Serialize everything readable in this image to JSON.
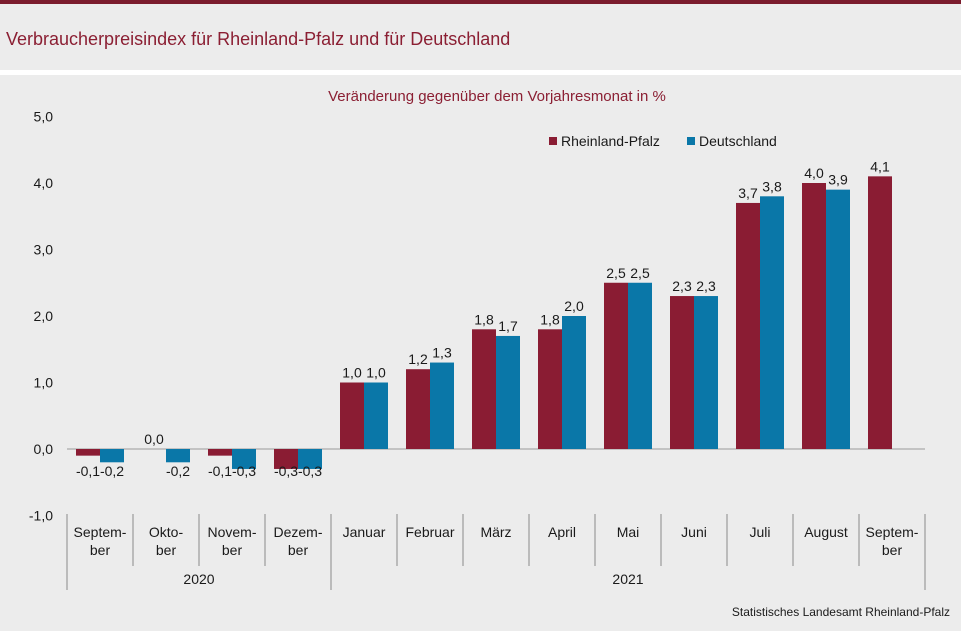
{
  "page_title": "Verbraucherpreisindex für Rheinland-Pfalz und für Deutschland",
  "colors": {
    "accent": "#7b1c2d",
    "title": "#8b1f33",
    "rlp": "#8a1c33",
    "de": "#0a77a8"
  },
  "chart_data": {
    "type": "bar",
    "title": "Veränderung gegenüber dem Vorjahresmonat in %",
    "xlabel": "",
    "ylabel": "",
    "ylim": [
      -1,
      5
    ],
    "yticks": [
      "5,0",
      "4,0",
      "3,0",
      "2,0",
      "1,0",
      "0,0",
      "-1,0"
    ],
    "grid": false,
    "legend_position": "top-right",
    "categories": [
      [
        "Septem-",
        "ber"
      ],
      [
        "Okto-",
        "ber"
      ],
      [
        "Novem-",
        "ber"
      ],
      [
        "Dezem-",
        "ber"
      ],
      [
        "Januar"
      ],
      [
        "Februar"
      ],
      [
        "März"
      ],
      [
        "April"
      ],
      [
        "Mai"
      ],
      [
        "Juni"
      ],
      [
        "Juli"
      ],
      [
        "August"
      ],
      [
        "Septem-",
        "ber"
      ]
    ],
    "year_groups": [
      {
        "label": "2020",
        "count": 4
      },
      {
        "label": "2021",
        "count": 9
      }
    ],
    "series": [
      {
        "name": "Rheinland-Pfalz",
        "values": [
          -0.1,
          0.0,
          -0.1,
          -0.3,
          1.0,
          1.2,
          1.8,
          1.8,
          2.5,
          2.3,
          3.7,
          4.0,
          4.1
        ],
        "labels": [
          "-0,1",
          "0,0",
          "-0,1",
          "-0,3",
          "1,0",
          "1,2",
          "1,8",
          "1,8",
          "2,5",
          "2,3",
          "3,7",
          "4,0",
          "4,1"
        ]
      },
      {
        "name": "Deutschland",
        "values": [
          -0.2,
          -0.2,
          -0.3,
          -0.3,
          1.0,
          1.3,
          1.7,
          2.0,
          2.5,
          2.3,
          3.8,
          3.9,
          null
        ],
        "labels": [
          "-0,2",
          "-0,2",
          "-0,3",
          "-0,3",
          "1,0",
          "1,3",
          "1,7",
          "2,0",
          "2,5",
          "2,3",
          "3,8",
          "3,9",
          ""
        ]
      }
    ]
  },
  "footer": {
    "source": "Statistisches Landesamt Rheinland-Pfalz"
  }
}
